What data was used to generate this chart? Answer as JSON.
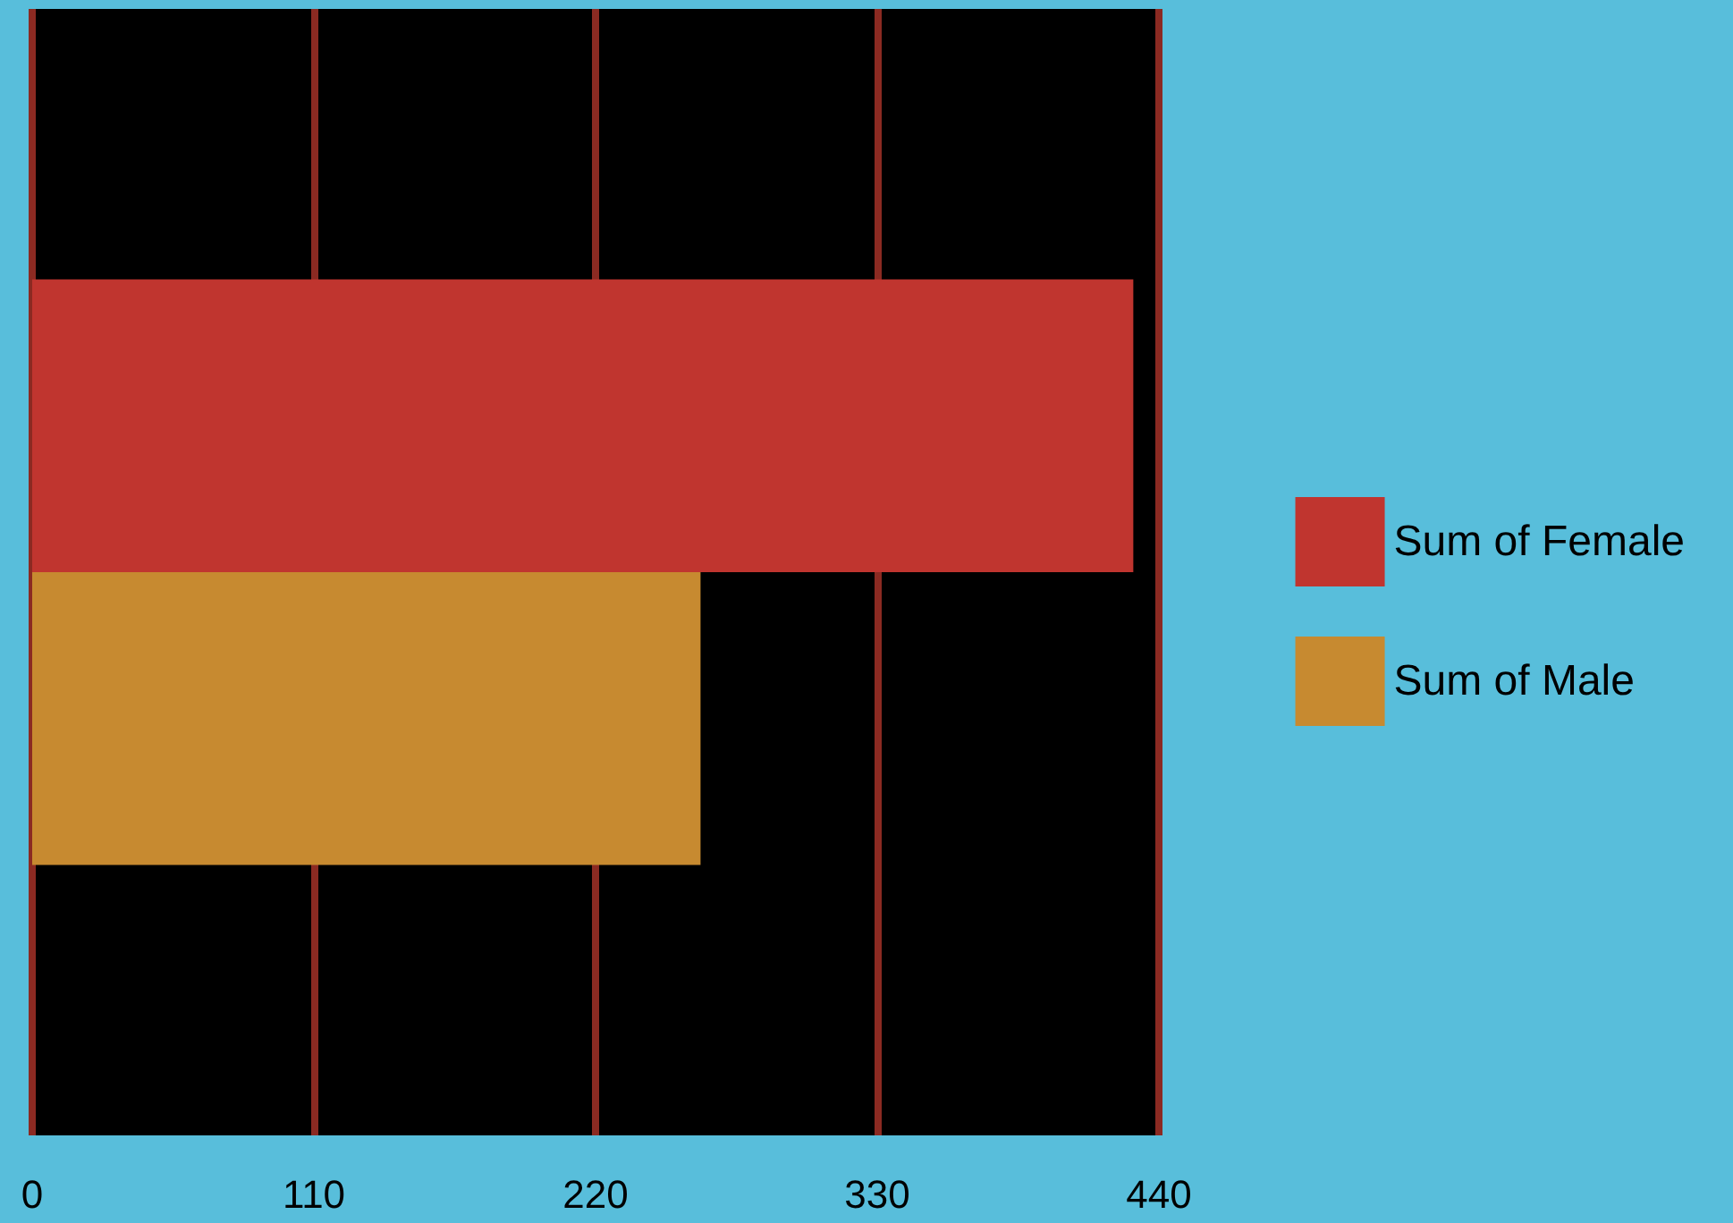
{
  "chart_data": {
    "type": "bar",
    "orientation": "horizontal",
    "categories": [
      null
    ],
    "series": [
      {
        "name": "Sum of Female",
        "color": "#c0352f",
        "values": [
          430
        ]
      },
      {
        "name": "Sum of Male",
        "color": "#c78a30",
        "values": [
          261
        ]
      }
    ],
    "xlim": [
      0,
      440
    ],
    "xticks": [
      0,
      110,
      220,
      330,
      440
    ],
    "grid": "x",
    "legend": "right"
  }
}
